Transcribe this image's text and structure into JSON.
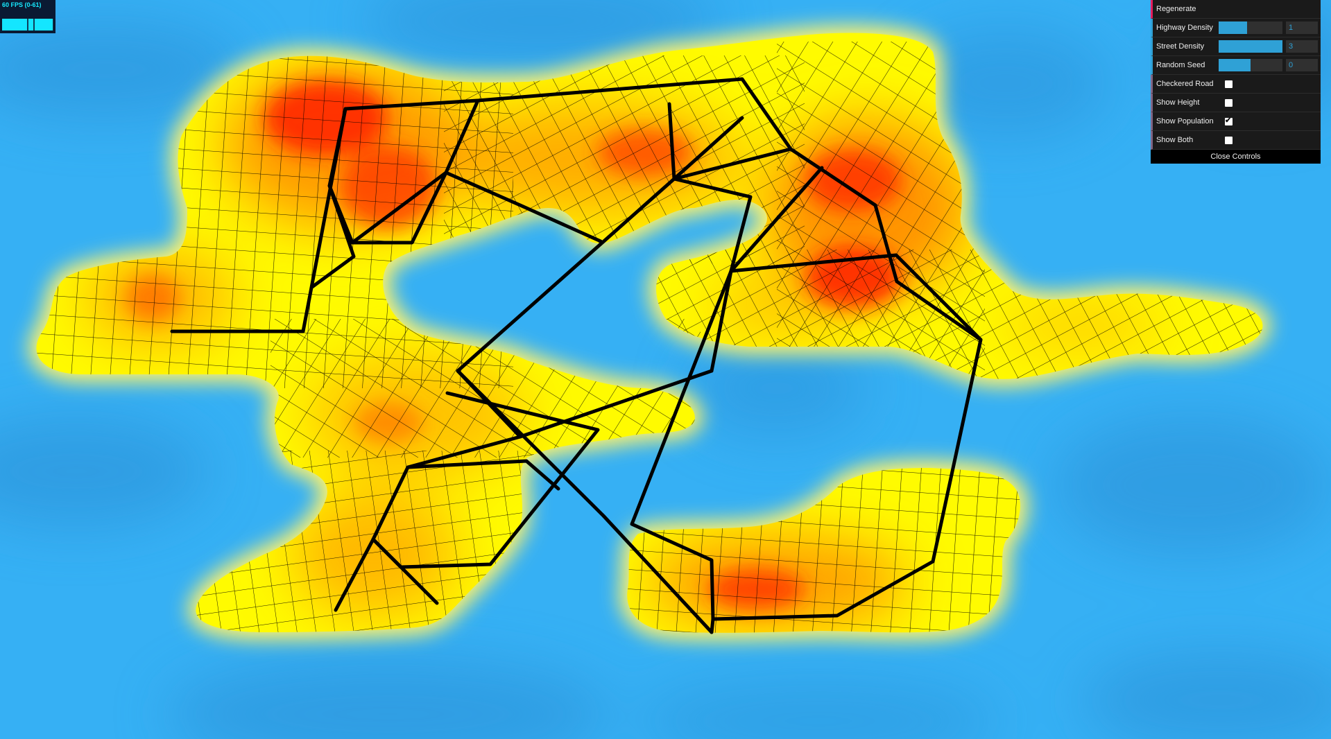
{
  "fps": {
    "label": "60 FPS (0-61)",
    "current_fps": 60,
    "min_fps": 0,
    "max_fps": 61
  },
  "controls": {
    "regenerate_label": "Regenerate",
    "highway_density": {
      "label": "Highway Density",
      "value": "1",
      "fraction": 0.45
    },
    "street_density": {
      "label": "Street Density",
      "value": "3",
      "fraction": 1.0
    },
    "random_seed": {
      "label": "Random Seed",
      "value": "0",
      "fraction": 0.5
    },
    "checkered_road": {
      "label": "Checkered Road",
      "checked": false
    },
    "show_height": {
      "label": "Show Height",
      "checked": false
    },
    "show_population": {
      "label": "Show Population",
      "checked": true
    },
    "show_both": {
      "label": "Show Both",
      "checked": false
    },
    "close_label": "Close Controls"
  },
  "colors": {
    "water": "#38b2f5",
    "land_low": "#fffb00",
    "land_mid": "#ffa600",
    "land_high": "#ff1a00",
    "roads": "#000000",
    "accent": "#2fa1d6"
  }
}
